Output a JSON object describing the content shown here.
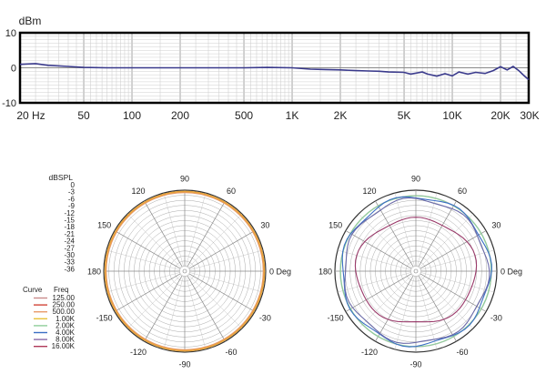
{
  "chart_data": [
    {
      "type": "line",
      "ylabel": "dBm",
      "x_scale": "log",
      "xlim": [
        20,
        30000
      ],
      "ylim": [
        -10,
        10
      ],
      "x_ticks": [
        {
          "value": 20,
          "label": "20 Hz"
        },
        {
          "value": 50,
          "label": "50"
        },
        {
          "value": 100,
          "label": "100"
        },
        {
          "value": 200,
          "label": "200"
        },
        {
          "value": 500,
          "label": "500"
        },
        {
          "value": 1000,
          "label": "1K"
        },
        {
          "value": 2000,
          "label": "2K"
        },
        {
          "value": 5000,
          "label": "5K"
        },
        {
          "value": 10000,
          "label": "10K"
        },
        {
          "value": 20000,
          "label": "20K"
        },
        {
          "value": 30000,
          "label": "30K"
        }
      ],
      "y_ticks": [
        {
          "value": 10,
          "label": "10"
        },
        {
          "value": 0,
          "label": "0"
        },
        {
          "value": -10,
          "label": "-10"
        }
      ],
      "grid": true,
      "series": [
        {
          "color": "#3a3a8c",
          "x": [
            20,
            25,
            30,
            40,
            50,
            70,
            100,
            150,
            200,
            300,
            500,
            700,
            1000,
            1300,
            1600,
            2000,
            2500,
            3000,
            3500,
            4000,
            5000,
            5500,
            6500,
            7000,
            8000,
            9000,
            10000,
            11000,
            12500,
            14000,
            16000,
            18000,
            20000,
            22000,
            24000,
            26000,
            28000,
            30000
          ],
          "y": [
            1.0,
            1.2,
            0.7,
            0.4,
            0.1,
            0.0,
            0.0,
            0.0,
            0.0,
            0.0,
            0.0,
            0.1,
            0.0,
            -0.4,
            -0.5,
            -0.6,
            -0.8,
            -0.9,
            -1.0,
            -1.2,
            -1.3,
            -1.8,
            -1.2,
            -1.8,
            -2.4,
            -1.7,
            -2.3,
            -1.2,
            -1.8,
            -1.3,
            -1.6,
            -0.8,
            0.3,
            -0.6,
            0.4,
            -0.8,
            -2.2,
            -3.4
          ]
        }
      ]
    },
    {
      "type": "polar",
      "r_label": "dBSPL",
      "r_ticks": [
        "0",
        "-3",
        "-6",
        "-9",
        "-12",
        "-15",
        "-18",
        "-21",
        "-24",
        "-27",
        "-30",
        "-33",
        "-36"
      ],
      "angle_labels": [
        {
          "deg": 90,
          "label": "90"
        },
        {
          "deg": 60,
          "label": "60"
        },
        {
          "deg": 30,
          "label": "30"
        },
        {
          "deg": 0,
          "label": "0 Deg"
        },
        {
          "deg": -30,
          "label": "-30"
        },
        {
          "deg": -60,
          "label": "-60"
        },
        {
          "deg": -90,
          "label": "-90"
        },
        {
          "deg": -120,
          "label": "-120"
        },
        {
          "deg": -150,
          "label": "-150"
        },
        {
          "deg": 180,
          "label": "180"
        },
        {
          "deg": 150,
          "label": "150"
        },
        {
          "deg": 120,
          "label": "120"
        }
      ],
      "legend": {
        "headers": [
          "Curve",
          "Freq"
        ],
        "entries": [
          {
            "label": "125.00",
            "color": "#c98a8a"
          },
          {
            "label": "250.00",
            "color": "#d2453a"
          },
          {
            "label": "500.00",
            "color": "#e89a6a"
          },
          {
            "label": "1.00K",
            "color": "#e9c23a"
          },
          {
            "label": "2.00K",
            "color": "#8fcf9a"
          },
          {
            "label": "4.00K",
            "color": "#3b6fc4"
          },
          {
            "label": "8.00K",
            "color": "#8a6aa8"
          },
          {
            "label": "16.00K",
            "color": "#b03a5a"
          }
        ]
      },
      "series": [
        {
          "freq": "500.00",
          "color": "#e89a6a",
          "level_db": -1.0
        },
        {
          "freq": "1.00K",
          "color": "#e9a43a",
          "level_db": -0.6
        }
      ]
    },
    {
      "type": "polar",
      "angle_labels": [
        {
          "deg": 90,
          "label": "90"
        },
        {
          "deg": 60,
          "label": "60"
        },
        {
          "deg": 30,
          "label": "30"
        },
        {
          "deg": 0,
          "label": "0 Deg"
        },
        {
          "deg": -30,
          "label": "-30"
        },
        {
          "deg": -60,
          "label": "-60"
        },
        {
          "deg": -90,
          "label": "-90"
        },
        {
          "deg": -120,
          "label": "-120"
        },
        {
          "deg": -150,
          "label": "-150"
        },
        {
          "deg": 180,
          "label": "180"
        },
        {
          "deg": 150,
          "label": "150"
        },
        {
          "deg": 120,
          "label": "120"
        }
      ],
      "series": [
        {
          "freq": "2.00K",
          "color": "#8fcf9a",
          "level_db": -2.5
        },
        {
          "freq": "4.00K",
          "color": "#3b6fc4",
          "level_db": -3.0
        },
        {
          "freq": "8.00K",
          "color": "#6a6aa8",
          "level_db": -4.0
        },
        {
          "freq": "16.00K",
          "color": "#9a3a6a",
          "level_db": -11.0
        }
      ]
    }
  ]
}
